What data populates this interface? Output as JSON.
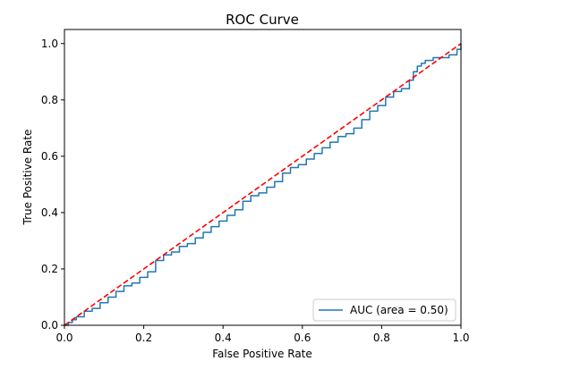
{
  "chart_data": {
    "type": "line",
    "title": "ROC Curve",
    "xlabel": "False Positive Rate",
    "ylabel": "True Positive Rate",
    "xlim": [
      0.0,
      1.0
    ],
    "ylim": [
      0.0,
      1.05
    ],
    "xticks": [
      0.0,
      0.2,
      0.4,
      0.6,
      0.8,
      1.0
    ],
    "yticks": [
      0.0,
      0.2,
      0.4,
      0.6,
      0.8,
      1.0
    ],
    "xtick_labels": [
      "0.0",
      "0.2",
      "0.4",
      "0.6",
      "0.8",
      "1.0"
    ],
    "ytick_labels": [
      "0.0",
      "0.2",
      "0.4",
      "0.6",
      "0.8",
      "1.0"
    ],
    "grid": false,
    "legend_position": "lower-right",
    "series": [
      {
        "name": "AUC (area = 0.50)",
        "color": "#1f77b4",
        "style": "solid",
        "step": true,
        "x": [
          0.0,
          0.01,
          0.02,
          0.03,
          0.05,
          0.07,
          0.09,
          0.11,
          0.13,
          0.15,
          0.17,
          0.19,
          0.21,
          0.23,
          0.25,
          0.27,
          0.29,
          0.31,
          0.33,
          0.35,
          0.37,
          0.39,
          0.41,
          0.43,
          0.45,
          0.47,
          0.49,
          0.51,
          0.53,
          0.55,
          0.57,
          0.59,
          0.61,
          0.63,
          0.65,
          0.67,
          0.69,
          0.71,
          0.73,
          0.75,
          0.77,
          0.79,
          0.81,
          0.83,
          0.85,
          0.87,
          0.88,
          0.89,
          0.9,
          0.91,
          0.92,
          0.93,
          0.95,
          0.97,
          0.99,
          1.0
        ],
        "y": [
          0.0,
          0.01,
          0.02,
          0.03,
          0.05,
          0.06,
          0.08,
          0.1,
          0.12,
          0.14,
          0.15,
          0.17,
          0.19,
          0.23,
          0.25,
          0.26,
          0.28,
          0.29,
          0.31,
          0.33,
          0.35,
          0.37,
          0.39,
          0.41,
          0.44,
          0.46,
          0.47,
          0.49,
          0.51,
          0.54,
          0.56,
          0.57,
          0.59,
          0.61,
          0.63,
          0.65,
          0.67,
          0.68,
          0.7,
          0.73,
          0.76,
          0.78,
          0.81,
          0.83,
          0.84,
          0.87,
          0.9,
          0.92,
          0.93,
          0.94,
          0.94,
          0.95,
          0.95,
          0.96,
          0.98,
          1.0
        ]
      },
      {
        "name": "",
        "color": "#ff0000",
        "style": "dashed",
        "step": false,
        "x": [
          0.0,
          1.0
        ],
        "y": [
          0.0,
          1.0
        ]
      }
    ]
  }
}
